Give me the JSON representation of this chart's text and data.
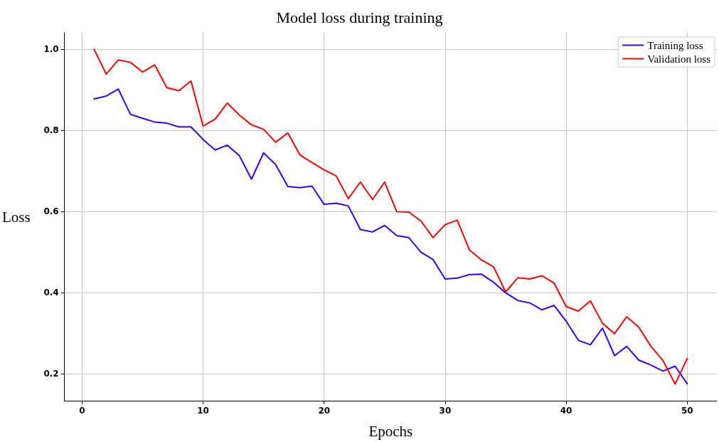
{
  "chart_data": {
    "type": "line",
    "title": "Model loss during training",
    "xlabel": "Epochs",
    "ylabel": "Loss",
    "x": [
      1,
      2,
      3,
      4,
      5,
      6,
      7,
      8,
      9,
      10,
      11,
      12,
      13,
      14,
      15,
      16,
      17,
      18,
      19,
      20,
      21,
      22,
      23,
      24,
      25,
      26,
      27,
      28,
      29,
      30,
      31,
      32,
      33,
      34,
      35,
      36,
      37,
      38,
      39,
      40,
      41,
      42,
      43,
      44,
      45,
      46,
      47,
      48,
      49,
      50
    ],
    "series": [
      {
        "name": "Training loss",
        "color": "#3300ff",
        "values": [
          0.878,
          0.885,
          0.902,
          0.84,
          0.83,
          0.821,
          0.818,
          0.809,
          0.809,
          0.778,
          0.752,
          0.764,
          0.738,
          0.68,
          0.745,
          0.716,
          0.662,
          0.659,
          0.663,
          0.618,
          0.621,
          0.614,
          0.556,
          0.55,
          0.566,
          0.541,
          0.536,
          0.5,
          0.482,
          0.434,
          0.436,
          0.445,
          0.446,
          0.426,
          0.4,
          0.381,
          0.375,
          0.358,
          0.369,
          0.33,
          0.283,
          0.272,
          0.313,
          0.245,
          0.268,
          0.234,
          0.222,
          0.207,
          0.219,
          0.176
        ]
      },
      {
        "name": "Validation loss",
        "color": "#ff0000",
        "values": [
          1.0,
          0.939,
          0.974,
          0.968,
          0.944,
          0.962,
          0.906,
          0.898,
          0.922,
          0.811,
          0.828,
          0.868,
          0.838,
          0.814,
          0.803,
          0.771,
          0.794,
          0.74,
          0.721,
          0.703,
          0.688,
          0.632,
          0.673,
          0.63,
          0.673,
          0.6,
          0.599,
          0.577,
          0.536,
          0.568,
          0.579,
          0.506,
          0.481,
          0.464,
          0.402,
          0.437,
          0.434,
          0.442,
          0.424,
          0.366,
          0.355,
          0.38,
          0.325,
          0.299,
          0.341,
          0.315,
          0.268,
          0.233,
          0.175,
          0.238
        ]
      }
    ],
    "xlim": [
      -1.45,
      52.45
    ],
    "xticks": [
      0,
      10,
      20,
      30,
      40,
      50
    ],
    "ylim": [
      0.134,
      1.041
    ],
    "yticks": [
      0.2,
      0.4,
      0.6,
      0.8,
      {
        "value": 1,
        "label": "1.0"
      }
    ],
    "grid": true,
    "legend": "top right",
    "marker": "none",
    "line_style": "solid"
  }
}
